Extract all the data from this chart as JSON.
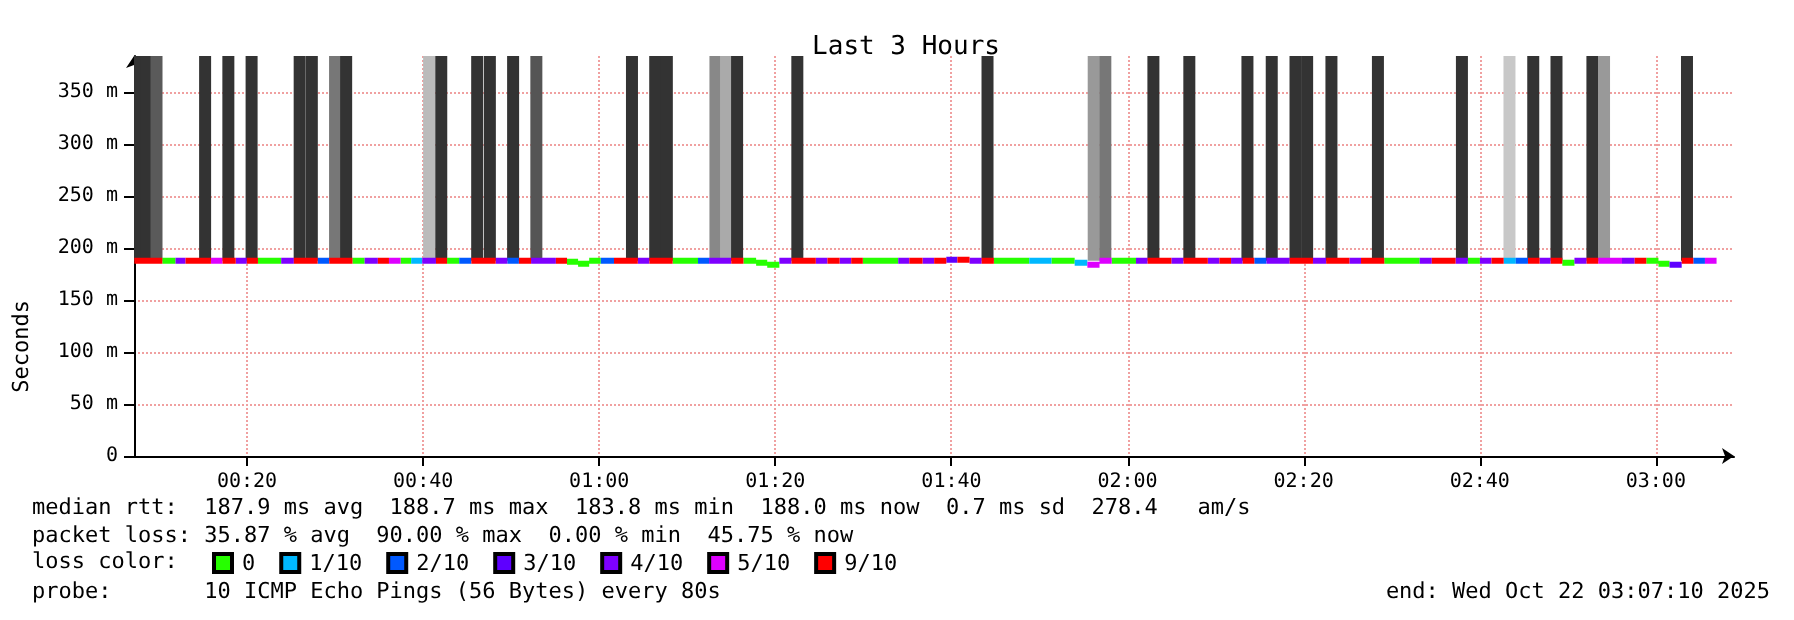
{
  "chart_data": {
    "type": "line",
    "title": "Last 3 Hours",
    "ylabel": "Seconds",
    "legend_title": "loss color:",
    "legend": "bottom",
    "grid": true,
    "xlim": [
      0.1194,
      3.148
    ],
    "xticks": [
      {
        "value": 0.3333,
        "label": "00:20"
      },
      {
        "value": 0.6667,
        "label": "00:40"
      },
      {
        "value": 1,
        "label": "01:00"
      },
      {
        "value": 1.3333,
        "label": "01:20"
      },
      {
        "value": 1.6667,
        "label": "01:40"
      },
      {
        "value": 2,
        "label": "02:00"
      },
      {
        "value": 2.3333,
        "label": "02:20"
      },
      {
        "value": 2.6667,
        "label": "02:40"
      },
      {
        "value": 3,
        "label": "03:00"
      }
    ],
    "ylim": [
      0,
      385
    ],
    "yticks": [
      0,
      {
        "value": 50,
        "label": "50 m"
      },
      {
        "value": 100,
        "label": "100 m"
      },
      {
        "value": 150,
        "label": "150 m"
      },
      {
        "value": 200,
        "label": "200 m"
      },
      {
        "value": 250,
        "label": "250 m"
      },
      {
        "value": 300,
        "label": "300 m"
      },
      {
        "value": 350,
        "label": "350 m"
      }
    ],
    "annotations": [
      "median rtt:  187.9 ms avg  188.7 ms max  183.8 ms min  188.0 ms now  0.7 ms sd  278.4   am/s",
      "packet loss: 35.87 % avg  90.00 % max  0.00 % min  45.75 % now",
      "probe:       10 ICMP Echo Pings (56 Bytes) every 80s",
      "end: Wed Oct 22 03:07:10 2025"
    ],
    "series": [
      {
        "type": "bar",
        "x": [
          0.125,
          0.143,
          0.162,
          0.254,
          0.298,
          0.342,
          0.433,
          0.456,
          0.5,
          0.521,
          0.678,
          0.701,
          0.769,
          0.793,
          0.837,
          0.881,
          1.062,
          1.106,
          1.128,
          1.22,
          1.24,
          1.261,
          1.375,
          1.735,
          1.936,
          1.958,
          2.049,
          2.117,
          2.227,
          2.273,
          2.318,
          2.34,
          2.386,
          2.474,
          2.633,
          2.723,
          2.768,
          2.812,
          2.88,
          2.902,
          3.059
        ],
        "base": [
          188,
          188,
          188,
          188,
          188,
          188,
          188,
          188,
          188,
          188,
          188,
          188,
          188,
          188,
          188,
          188,
          188,
          188,
          188,
          188,
          188,
          188,
          188,
          188,
          188,
          188,
          188,
          188,
          188,
          188,
          188,
          188,
          188,
          188,
          188,
          188,
          188,
          188,
          188,
          188,
          188
        ],
        "values": [
          197,
          197,
          197,
          197,
          197,
          197,
          197,
          197,
          197,
          197,
          197,
          197,
          197,
          197,
          197,
          197,
          197,
          197,
          197,
          197,
          197,
          197,
          197,
          197,
          197,
          197,
          197,
          197,
          197,
          197,
          197,
          197,
          197,
          197,
          197,
          197,
          197,
          197,
          197,
          197,
          197
        ],
        "colors": [
          "#333333",
          "#333333",
          "#5a5a5a",
          "#333333",
          "#333333",
          "#333333",
          "#333333",
          "#333333",
          "#777777",
          "#333333",
          "#bbbbbb",
          "#333333",
          "#333333",
          "#333333",
          "#333333",
          "#555555",
          "#333333",
          "#333333",
          "#333333",
          "#888888",
          "#aaaaaa",
          "#333333",
          "#333333",
          "#333333",
          "#999999",
          "#777777",
          "#333333",
          "#333333",
          "#333333",
          "#333333",
          "#333333",
          "#333333",
          "#333333",
          "#333333",
          "#333333",
          "#c8c8c8",
          "#333333",
          "#333333",
          "#333333",
          "#999999",
          "#333333"
        ]
      },
      {
        "name": "0",
        "color": "#26ff00",
        "x": [
          0.173,
          0.198,
          null,
          0.354,
          0.398,
          null,
          0.533,
          0.556,
          null,
          0.624,
          0.644,
          null,
          0.712,
          0.735,
          null,
          0.939,
          0.96,
          null,
          0.96,
          0.981,
          null,
          0.981,
          1.003,
          null,
          1.139,
          1.187,
          null,
          1.273,
          1.297,
          null,
          1.297,
          1.318,
          null,
          1.318,
          1.341,
          null,
          1.499,
          1.566,
          null,
          1.747,
          1.814,
          null,
          1.856,
          1.9,
          null,
          1.97,
          2.016,
          null,
          2.486,
          2.553,
          null,
          2.644,
          2.667,
          null,
          2.823,
          2.846,
          null,
          2.982,
          3.005,
          null,
          3.005,
          3.026
        ],
        "values": [
          188,
          188,
          null,
          188,
          188,
          null,
          188,
          188,
          null,
          188,
          188,
          null,
          188,
          188,
          null,
          187,
          187,
          null,
          185,
          185,
          null,
          188,
          188,
          null,
          188,
          188,
          null,
          188,
          188,
          null,
          186,
          186,
          null,
          184,
          184,
          null,
          188,
          188,
          null,
          188,
          188,
          null,
          188,
          188,
          null,
          188,
          188,
          null,
          188,
          188,
          null,
          188,
          188,
          null,
          186,
          186,
          null,
          188,
          188,
          null,
          185,
          185
        ]
      },
      {
        "name": "1/10",
        "color": "#00b8ff",
        "x": [
          0.644,
          0.665,
          null,
          1.814,
          1.856,
          null,
          1.9,
          1.924,
          null,
          2.712,
          2.735
        ],
        "values": [
          188,
          188,
          null,
          188,
          188,
          null,
          186,
          186,
          null,
          188,
          188
        ]
      },
      {
        "name": "2/10",
        "color": "#0059ff",
        "x": [
          0.467,
          0.489,
          null,
          0.735,
          0.758,
          null,
          0.826,
          0.848,
          null,
          1.003,
          1.028,
          null,
          1.187,
          1.208,
          null,
          2.24,
          2.263,
          null,
          2.735,
          2.758,
          null,
          3.071,
          3.093
        ],
        "values": [
          188,
          188,
          null,
          188,
          188,
          null,
          188,
          188,
          null,
          188,
          188,
          null,
          188,
          188,
          null,
          188,
          188,
          null,
          188,
          188,
          null,
          188,
          188
        ]
      },
      {
        "name": "3/10",
        "color": "#5e00ff",
        "x": [
          1.657,
          1.678,
          null,
          3.026,
          3.049
        ],
        "values": [
          189,
          189,
          null,
          184,
          184
        ]
      },
      {
        "name": "4/10",
        "color": "#7e00ff",
        "x": [
          0.198,
          0.217,
          null,
          0.312,
          0.333,
          null,
          0.398,
          0.422,
          null,
          0.556,
          0.581,
          null,
          0.665,
          0.691,
          null,
          0.804,
          0.826,
          null,
          0.871,
          0.918,
          null,
          1.073,
          1.095,
          null,
          1.208,
          1.25,
          null,
          1.341,
          1.364,
          null,
          1.41,
          1.432,
          null,
          1.455,
          1.477,
          null,
          1.566,
          1.587,
          null,
          1.612,
          1.634,
          null,
          1.701,
          1.724,
          null,
          2.016,
          2.038,
          null,
          2.083,
          2.106,
          null,
          2.152,
          2.174,
          null,
          2.196,
          2.218,
          null,
          2.263,
          2.307,
          null,
          2.351,
          2.376,
          null,
          2.42,
          2.442,
          null,
          2.553,
          2.576,
          null,
          2.621,
          2.644,
          null,
          2.667,
          2.689,
          null,
          2.78,
          2.801,
          null,
          2.846,
          2.869,
          null,
          2.936,
          2.96
        ],
        "values": [
          188,
          188,
          null,
          188,
          188,
          null,
          188,
          188,
          null,
          188,
          188,
          null,
          188,
          188,
          null,
          188,
          188,
          null,
          188,
          188,
          null,
          188,
          188,
          null,
          188,
          188,
          null,
          188,
          188,
          null,
          188,
          188,
          null,
          188,
          188,
          null,
          188,
          188,
          null,
          188,
          188,
          null,
          188,
          188,
          null,
          188,
          188,
          null,
          188,
          188,
          null,
          188,
          188,
          null,
          188,
          188,
          null,
          188,
          188,
          null,
          188,
          188,
          null,
          188,
          188,
          null,
          188,
          188,
          null,
          188,
          188,
          null,
          188,
          188,
          null,
          188,
          188,
          null,
          188,
          188,
          null,
          188,
          188
        ]
      },
      {
        "name": "5/10",
        "color": "#dd00ff",
        "x": [
          0.265,
          0.287,
          null,
          0.602,
          0.624,
          null,
          1.924,
          1.947,
          null,
          1.947,
          1.97,
          null,
          2.891,
          2.936,
          null,
          3.093,
          3.115
        ],
        "values": [
          188,
          188,
          null,
          188,
          188,
          null,
          184,
          184,
          null,
          188,
          188,
          null,
          188,
          188,
          null,
          188,
          188
        ]
      },
      {
        "name": "9/10",
        "color": "#ff0000",
        "x": [
          0.12,
          0.173,
          null,
          0.217,
          0.265,
          null,
          0.287,
          0.312,
          null,
          0.333,
          0.354,
          null,
          0.422,
          0.467,
          null,
          0.489,
          0.533,
          null,
          0.581,
          0.602,
          null,
          0.691,
          0.712,
          null,
          0.758,
          0.804,
          null,
          0.848,
          0.871,
          null,
          0.918,
          0.939,
          null,
          1.028,
          1.073,
          null,
          1.095,
          1.139,
          null,
          1.25,
          1.273,
          null,
          1.364,
          1.41,
          null,
          1.432,
          1.455,
          null,
          1.477,
          1.499,
          null,
          1.587,
          1.612,
          null,
          1.634,
          1.657,
          null,
          1.678,
          1.701,
          null,
          1.724,
          1.747,
          null,
          2.038,
          2.083,
          null,
          2.106,
          2.152,
          null,
          2.174,
          2.196,
          null,
          2.218,
          2.24,
          null,
          2.307,
          2.351,
          null,
          2.376,
          2.42,
          null,
          2.442,
          2.486,
          null,
          2.576,
          2.621,
          null,
          2.689,
          2.712,
          null,
          2.758,
          2.78,
          null,
          2.801,
          2.823,
          null,
          2.869,
          2.891,
          null,
          2.96,
          2.982,
          null,
          3.049,
          3.071
        ],
        "values": [
          188,
          188,
          null,
          188,
          188,
          null,
          188,
          188,
          null,
          188,
          188,
          null,
          188,
          188,
          null,
          188,
          188,
          null,
          188,
          188,
          null,
          188,
          188,
          null,
          188,
          188,
          null,
          188,
          188,
          null,
          188,
          188,
          null,
          188,
          188,
          null,
          188,
          188,
          null,
          188,
          188,
          null,
          188,
          188,
          null,
          188,
          188,
          null,
          188,
          188,
          null,
          188,
          188,
          null,
          188,
          188,
          null,
          189,
          189,
          null,
          188,
          188,
          null,
          188,
          188,
          null,
          188,
          188,
          null,
          188,
          188,
          null,
          188,
          188,
          null,
          188,
          188,
          null,
          188,
          188,
          null,
          188,
          188,
          null,
          188,
          188,
          null,
          188,
          188,
          null,
          188,
          188,
          null,
          188,
          188,
          null,
          188,
          188,
          null,
          188,
          188,
          null,
          188,
          188
        ]
      }
    ]
  }
}
